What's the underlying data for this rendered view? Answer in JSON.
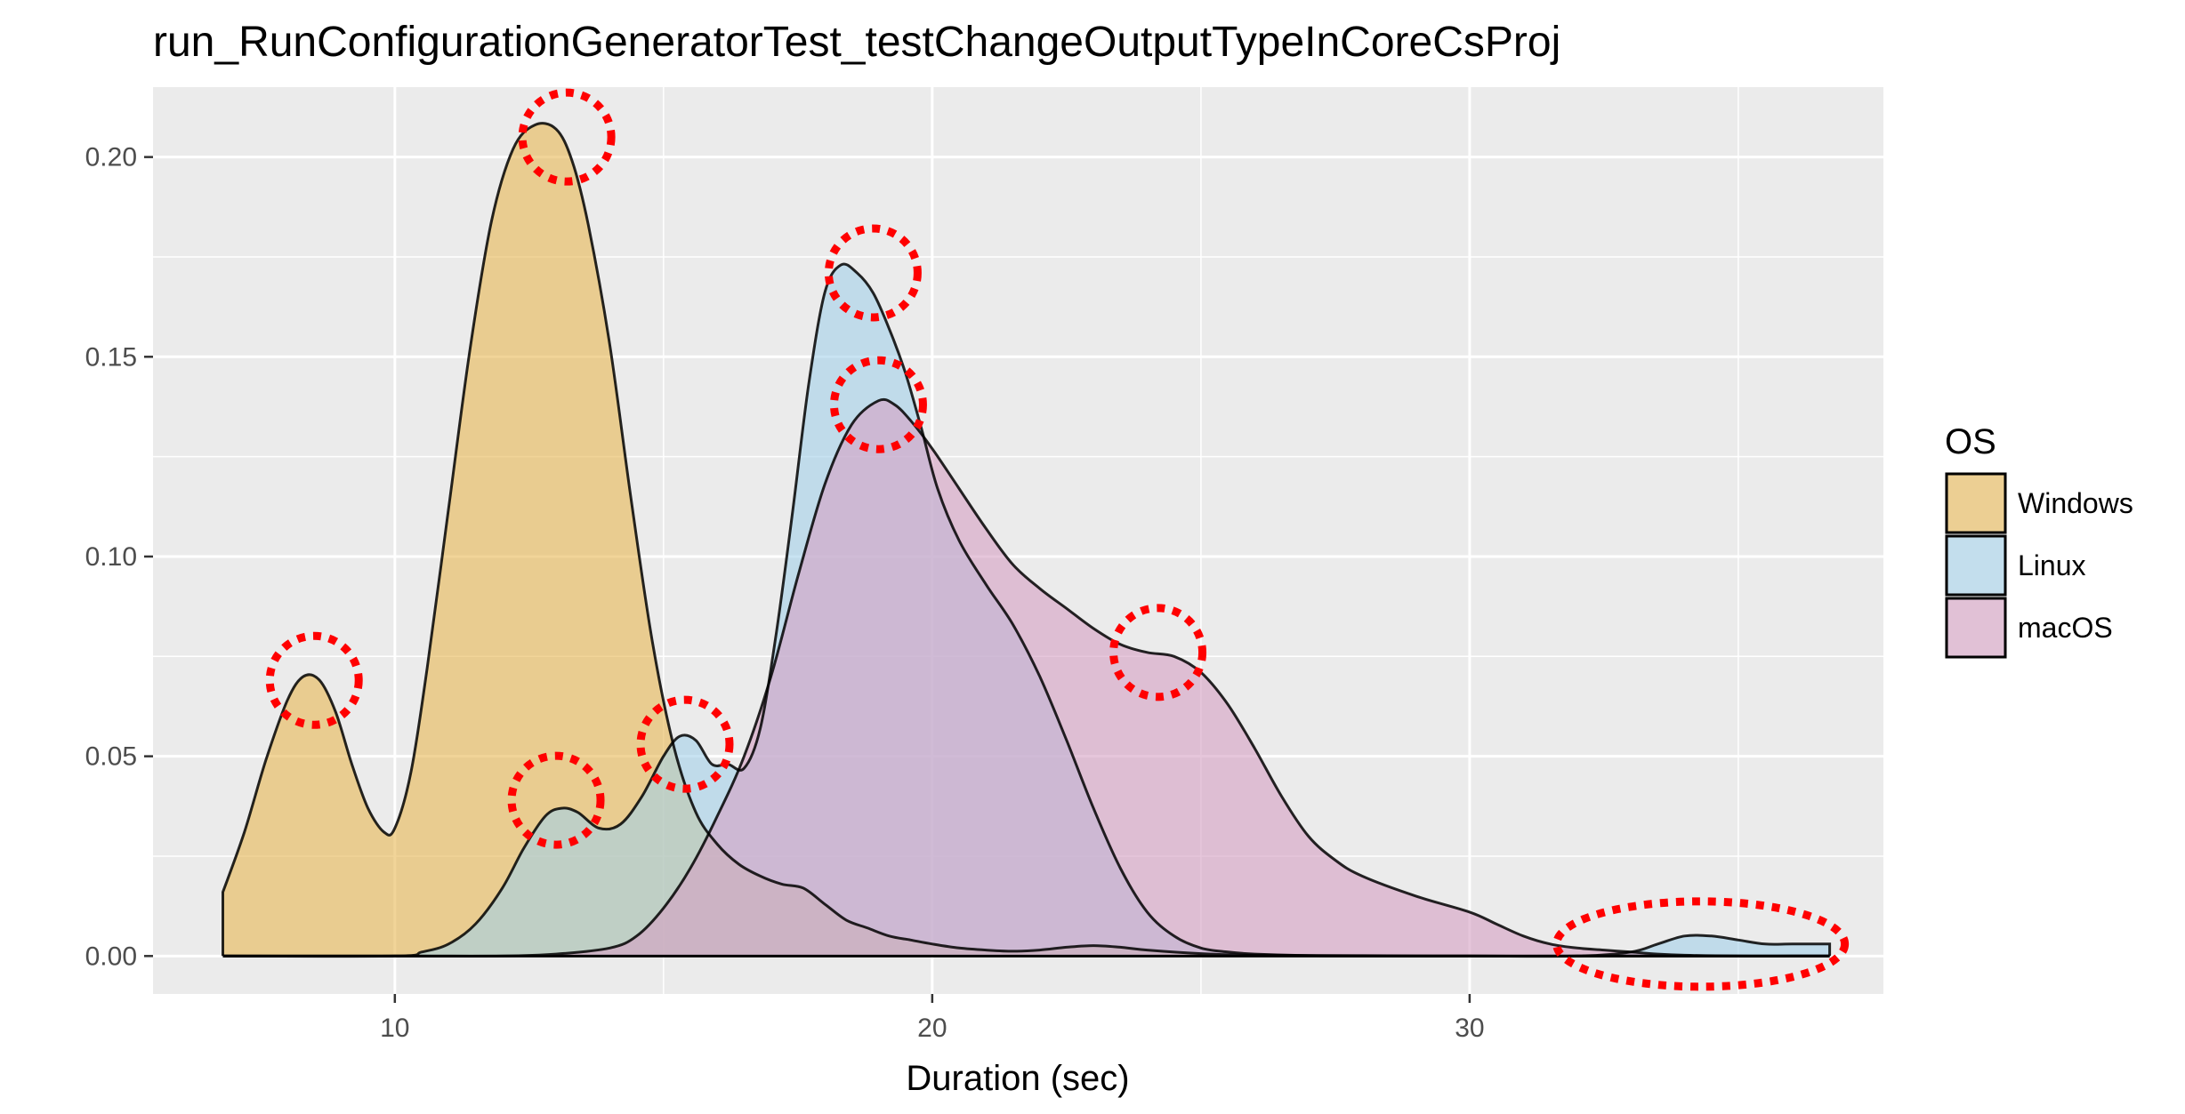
{
  "chart_data": {
    "type": "area",
    "title": "run_RunConfigurationGeneratorTest_testChangeOutputTypeInCoreCsProj",
    "xlabel": "Duration (sec)",
    "ylabel": "",
    "xlim": [
      5.5,
      37.7
    ],
    "ylim": [
      -0.0095,
      0.2175
    ],
    "x_ticks": [
      10,
      20,
      30
    ],
    "x_tick_labels": [
      "10",
      "20",
      "30"
    ],
    "y_ticks": [
      0.0,
      0.05,
      0.1,
      0.15,
      0.2
    ],
    "y_tick_labels": [
      "0.00",
      "0.05",
      "0.10",
      "0.15",
      "0.20"
    ],
    "grid": true,
    "legend_title": "OS",
    "legend_position": "right",
    "series": [
      {
        "name": "Windows",
        "color": "#E7B853",
        "x": [
          6.8,
          7.2,
          7.6,
          8.0,
          8.3,
          8.6,
          8.9,
          9.2,
          9.5,
          9.8,
          10.0,
          10.3,
          10.6,
          11.0,
          11.4,
          11.8,
          12.2,
          12.6,
          13.0,
          13.3,
          13.6,
          14.0,
          14.4,
          14.8,
          15.2,
          15.6,
          16.0,
          16.4,
          16.8,
          17.2,
          17.6,
          18.0,
          18.4,
          18.8,
          19.2,
          19.6,
          20.0,
          20.5,
          21.0,
          21.5,
          22.0,
          22.5,
          23.0,
          23.5,
          24.0,
          25.0,
          26.0,
          28.0,
          30.0,
          32.0,
          34.0,
          36.0,
          36.7
        ],
        "y": [
          0.016,
          0.031,
          0.049,
          0.064,
          0.07,
          0.069,
          0.061,
          0.048,
          0.037,
          0.031,
          0.032,
          0.046,
          0.072,
          0.112,
          0.152,
          0.184,
          0.202,
          0.208,
          0.207,
          0.199,
          0.183,
          0.153,
          0.114,
          0.078,
          0.052,
          0.036,
          0.028,
          0.023,
          0.02,
          0.018,
          0.017,
          0.013,
          0.009,
          0.007,
          0.005,
          0.004,
          0.003,
          0.002,
          0.0015,
          0.0012,
          0.0015,
          0.0022,
          0.0026,
          0.0022,
          0.0015,
          0.0006,
          0.0002,
          0.0001,
          0.0,
          0.0,
          0.0,
          0.0,
          0.0
        ]
      },
      {
        "name": "Linux",
        "color": "#A3D0EA",
        "x": [
          6.8,
          10.0,
          10.5,
          11.0,
          11.5,
          12.0,
          12.4,
          12.8,
          13.1,
          13.4,
          13.8,
          14.2,
          14.6,
          15.0,
          15.3,
          15.6,
          15.9,
          16.2,
          16.5,
          16.8,
          17.1,
          17.4,
          17.7,
          18.0,
          18.3,
          18.6,
          18.9,
          19.2,
          19.5,
          19.8,
          20.1,
          20.5,
          21.0,
          21.5,
          22.0,
          22.5,
          23.0,
          23.5,
          24.0,
          24.5,
          25.0,
          25.5,
          26.0,
          27.0,
          28.0,
          30.0,
          32.0,
          33.0,
          33.5,
          34.0,
          34.5,
          35.0,
          35.5,
          36.0,
          36.7
        ],
        "y": [
          0.0,
          0.0,
          0.001,
          0.003,
          0.008,
          0.017,
          0.027,
          0.035,
          0.037,
          0.036,
          0.032,
          0.033,
          0.04,
          0.05,
          0.055,
          0.054,
          0.048,
          0.048,
          0.047,
          0.057,
          0.081,
          0.111,
          0.143,
          0.166,
          0.173,
          0.171,
          0.166,
          0.157,
          0.146,
          0.132,
          0.117,
          0.104,
          0.093,
          0.083,
          0.07,
          0.054,
          0.037,
          0.022,
          0.011,
          0.005,
          0.002,
          0.001,
          0.0005,
          0.0001,
          0.0,
          0.0,
          0.0,
          0.001,
          0.003,
          0.005,
          0.005,
          0.004,
          0.003,
          0.003,
          0.003
        ]
      },
      {
        "name": "macOS",
        "color": "#D6A0C3",
        "x": [
          6.8,
          10.0,
          12.0,
          13.0,
          14.0,
          14.5,
          15.0,
          15.5,
          16.0,
          16.5,
          17.0,
          17.5,
          18.0,
          18.5,
          19.0,
          19.3,
          19.6,
          20.0,
          20.5,
          21.0,
          21.5,
          22.0,
          22.5,
          23.0,
          23.5,
          24.0,
          24.5,
          25.0,
          25.5,
          26.0,
          26.5,
          27.0,
          27.5,
          28.0,
          29.0,
          30.0,
          30.5,
          31.0,
          31.5,
          32.0,
          32.5,
          33.0,
          33.5,
          34.0,
          35.0,
          36.0,
          36.7
        ],
        "y": [
          0.0,
          0.0,
          0.0,
          0.0005,
          0.002,
          0.005,
          0.012,
          0.022,
          0.035,
          0.05,
          0.07,
          0.095,
          0.118,
          0.133,
          0.139,
          0.138,
          0.134,
          0.127,
          0.117,
          0.107,
          0.098,
          0.092,
          0.087,
          0.082,
          0.078,
          0.076,
          0.075,
          0.071,
          0.063,
          0.052,
          0.04,
          0.03,
          0.024,
          0.02,
          0.015,
          0.011,
          0.008,
          0.005,
          0.003,
          0.002,
          0.0015,
          0.001,
          0.0005,
          0.0002,
          0.0,
          0.0,
          0.0
        ]
      }
    ],
    "annotations": [
      {
        "shape": "dotted-ellipse",
        "color": "#FF0000",
        "x": 8.5,
        "y": 0.069
      },
      {
        "shape": "dotted-ellipse",
        "color": "#FF0000",
        "x": 13.2,
        "y": 0.205
      },
      {
        "shape": "dotted-ellipse",
        "color": "#FF0000",
        "x": 18.9,
        "y": 0.171
      },
      {
        "shape": "dotted-ellipse",
        "color": "#FF0000",
        "x": 19.0,
        "y": 0.138
      },
      {
        "shape": "dotted-ellipse",
        "color": "#FF0000",
        "x": 24.2,
        "y": 0.076
      },
      {
        "shape": "dotted-ellipse",
        "color": "#FF0000",
        "x": 15.4,
        "y": 0.053
      },
      {
        "shape": "dotted-ellipse",
        "color": "#FF0000",
        "x": 13.0,
        "y": 0.039
      },
      {
        "shape": "dotted-ellipse",
        "color": "#FF0000",
        "x": 34.3,
        "y": 0.003
      }
    ]
  }
}
